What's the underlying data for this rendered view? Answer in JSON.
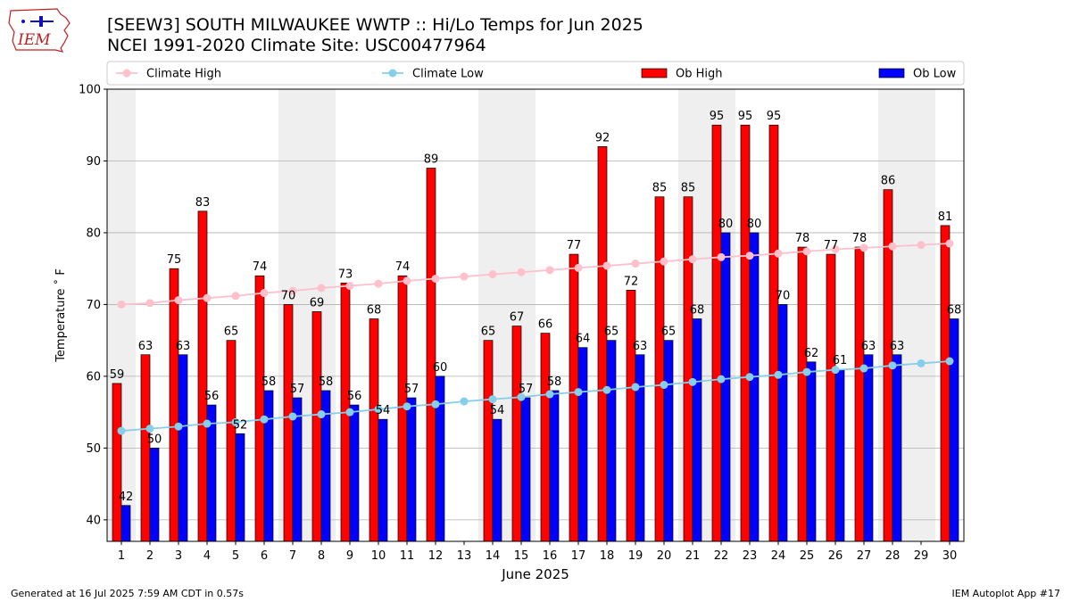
{
  "header": {
    "title_line1": "[SEEW3] SOUTH MILWAUKEE WWTP :: Hi/Lo Temps for Jun 2025",
    "title_line2": "NCEI 1991-2020 Climate Site: USC00477964",
    "logo_text": "IEM"
  },
  "footer": {
    "left": "Generated at 16 Jul 2025 7:59 AM CDT in 0.57s",
    "right": "IEM Autoplot App #17"
  },
  "colors": {
    "ob_high": "#ff0000",
    "ob_low": "#0000ff",
    "climate_high": "#ffc0cb",
    "climate_low": "#87ceeb",
    "weekend_shade": "#efefef"
  },
  "chart_data": {
    "type": "bar",
    "xlabel": "June 2025",
    "ylabel": "Temperature ˚ F",
    "ylim": [
      37,
      100
    ],
    "yticks": [
      40,
      50,
      60,
      70,
      80,
      90,
      100
    ],
    "grid": true,
    "legend_position": "top",
    "weekend_days": [
      1,
      7,
      8,
      14,
      15,
      21,
      22,
      28,
      29
    ],
    "categories": [
      1,
      2,
      3,
      4,
      5,
      6,
      7,
      8,
      9,
      10,
      11,
      12,
      13,
      14,
      15,
      16,
      17,
      18,
      19,
      20,
      21,
      22,
      23,
      24,
      25,
      26,
      27,
      28,
      29,
      30
    ],
    "series": [
      {
        "name": "Climate High",
        "kind": "line",
        "values": [
          70.0,
          70.2,
          70.6,
          70.9,
          71.2,
          71.6,
          71.9,
          72.3,
          72.6,
          72.9,
          73.3,
          73.6,
          73.9,
          74.2,
          74.5,
          74.8,
          75.1,
          75.4,
          75.7,
          76.0,
          76.3,
          76.6,
          76.8,
          77.1,
          77.4,
          77.7,
          77.9,
          78.1,
          78.3,
          78.5
        ]
      },
      {
        "name": "Climate Low",
        "kind": "line",
        "values": [
          52.4,
          52.7,
          53.0,
          53.4,
          53.6,
          54.0,
          54.4,
          54.7,
          55.0,
          55.4,
          55.8,
          56.1,
          56.5,
          56.8,
          57.1,
          57.5,
          57.8,
          58.1,
          58.5,
          58.8,
          59.2,
          59.6,
          59.9,
          60.2,
          60.6,
          60.9,
          61.1,
          61.5,
          61.8,
          62.1
        ]
      },
      {
        "name": "Ob High",
        "kind": "bar",
        "values": [
          59,
          63,
          75,
          83,
          65,
          74,
          70,
          69,
          73,
          68,
          74,
          89,
          null,
          65,
          67,
          66,
          77,
          92,
          72,
          85,
          85,
          95,
          95,
          95,
          78,
          77,
          78,
          86,
          null,
          81
        ]
      },
      {
        "name": "Ob Low",
        "kind": "bar",
        "values": [
          42,
          50,
          63,
          56,
          52,
          58,
          57,
          58,
          56,
          54,
          57,
          60,
          null,
          54,
          57,
          58,
          64,
          65,
          63,
          65,
          68,
          80,
          80,
          70,
          62,
          61,
          63,
          63,
          null,
          68
        ]
      }
    ]
  }
}
